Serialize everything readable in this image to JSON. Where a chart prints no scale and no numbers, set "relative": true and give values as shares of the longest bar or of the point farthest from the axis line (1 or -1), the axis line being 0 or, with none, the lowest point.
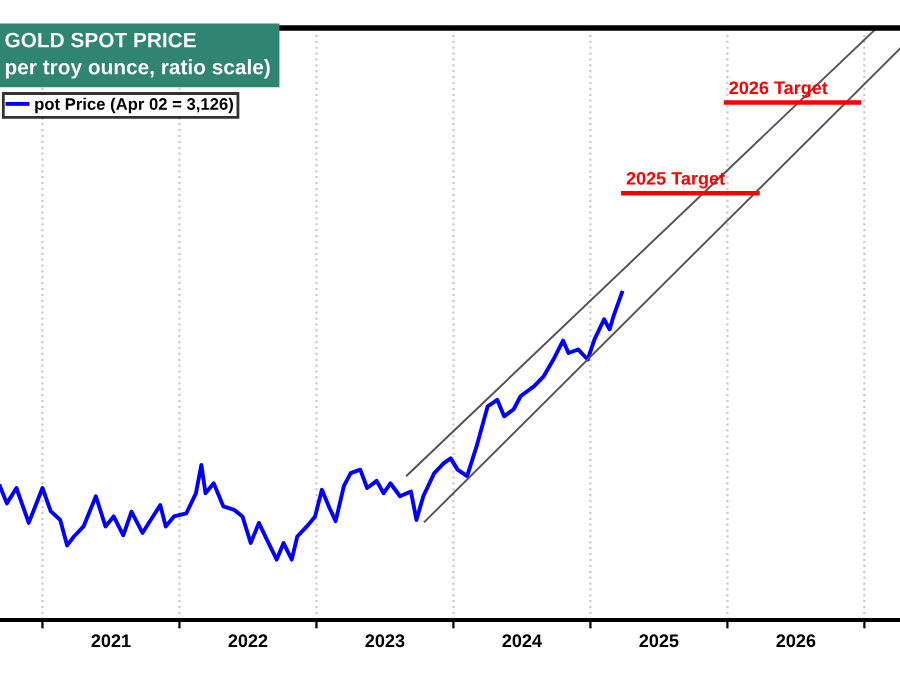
{
  "chart_data": {
    "type": "line",
    "title": "GOLD SPOT PRICE",
    "subtitle": "per troy ounce, ratio scale)",
    "relative": true,
    "xlim": [
      2020.69,
      2027.26
    ],
    "xticks": [
      {
        "value": 2021,
        "label": null
      },
      {
        "value": 2021.5,
        "label": "2021"
      },
      {
        "value": 2022,
        "label": null
      },
      {
        "value": 2022.5,
        "label": "2022"
      },
      {
        "value": 2023,
        "label": null
      },
      {
        "value": 2023.5,
        "label": "2023"
      },
      {
        "value": 2024,
        "label": null
      },
      {
        "value": 2024.5,
        "label": "2024"
      },
      {
        "value": 2025,
        "label": null
      },
      {
        "value": 2025.5,
        "label": "2025"
      },
      {
        "value": 2026,
        "label": null
      },
      {
        "value": 2026.5,
        "label": "2026"
      },
      {
        "value": 2027,
        "label": null
      }
    ],
    "grid": "x",
    "legend": "top left",
    "line_style": "solid",
    "tick_labels": "x",
    "series": [
      {
        "name": "pot Price (Apr 02 = 3,126)",
        "color": "#0000ff",
        "x": [
          2020.69,
          2020.74,
          2020.81,
          2020.9,
          2021.0,
          2021.06,
          2021.13,
          2021.18,
          2021.23,
          2021.3,
          2021.39,
          2021.46,
          2021.52,
          2021.59,
          2021.65,
          2021.73,
          2021.79,
          2021.86,
          2021.9,
          2021.96,
          2022.05,
          2022.12,
          2022.16,
          2022.19,
          2022.25,
          2022.32,
          2022.4,
          2022.46,
          2022.52,
          2022.58,
          2022.64,
          2022.71,
          2022.76,
          2022.82,
          2022.86,
          2022.93,
          2022.99,
          2023.04,
          2023.09,
          2023.14,
          2023.2,
          2023.25,
          2023.32,
          2023.37,
          2023.44,
          2023.49,
          2023.54,
          2023.61,
          2023.69,
          2023.73,
          2023.78,
          2023.86,
          2023.93,
          2023.98,
          2024.03,
          2024.1,
          2024.17,
          2024.25,
          2024.32,
          2024.37,
          2024.44,
          2024.49,
          2024.59,
          2024.66,
          2024.73,
          2024.8,
          2024.84,
          2024.91,
          2024.98,
          2025.03,
          2025.1,
          2025.14,
          2025.17,
          2025.23
        ],
        "values": [
          0.226,
          0.197,
          0.223,
          0.164,
          0.223,
          0.184,
          0.169,
          0.126,
          0.141,
          0.158,
          0.209,
          0.158,
          0.175,
          0.143,
          0.183,
          0.147,
          0.169,
          0.194,
          0.158,
          0.175,
          0.18,
          0.214,
          0.262,
          0.214,
          0.231,
          0.192,
          0.186,
          0.175,
          0.13,
          0.164,
          0.135,
          0.102,
          0.13,
          0.102,
          0.141,
          0.158,
          0.175,
          0.22,
          0.192,
          0.167,
          0.226,
          0.248,
          0.254,
          0.223,
          0.235,
          0.214,
          0.231,
          0.209,
          0.217,
          0.169,
          0.209,
          0.248,
          0.265,
          0.273,
          0.254,
          0.243,
          0.294,
          0.361,
          0.372,
          0.344,
          0.356,
          0.378,
          0.395,
          0.412,
          0.44,
          0.472,
          0.451,
          0.457,
          0.44,
          0.474,
          0.508,
          0.491,
          0.514,
          0.553
        ]
      },
      {
        "color": "#555555",
        "x": [
          2023.66,
          2027.09
        ],
        "values": [
          0.244,
          1.0
        ]
      },
      {
        "color": "#555555",
        "x": [
          2023.79,
          2027.26
        ],
        "values": [
          0.166,
          0.965
        ]
      },
      {
        "name": "2025 Target",
        "color": "#ff0000",
        "x": [
          2025.24,
          2026.22
        ],
        "values": [
          0.721,
          0.721
        ]
      },
      {
        "name": "2026 Target",
        "color": "#ff0000",
        "x": [
          2025.99,
          2026.96
        ],
        "values": [
          0.874,
          0.874
        ]
      }
    ]
  }
}
